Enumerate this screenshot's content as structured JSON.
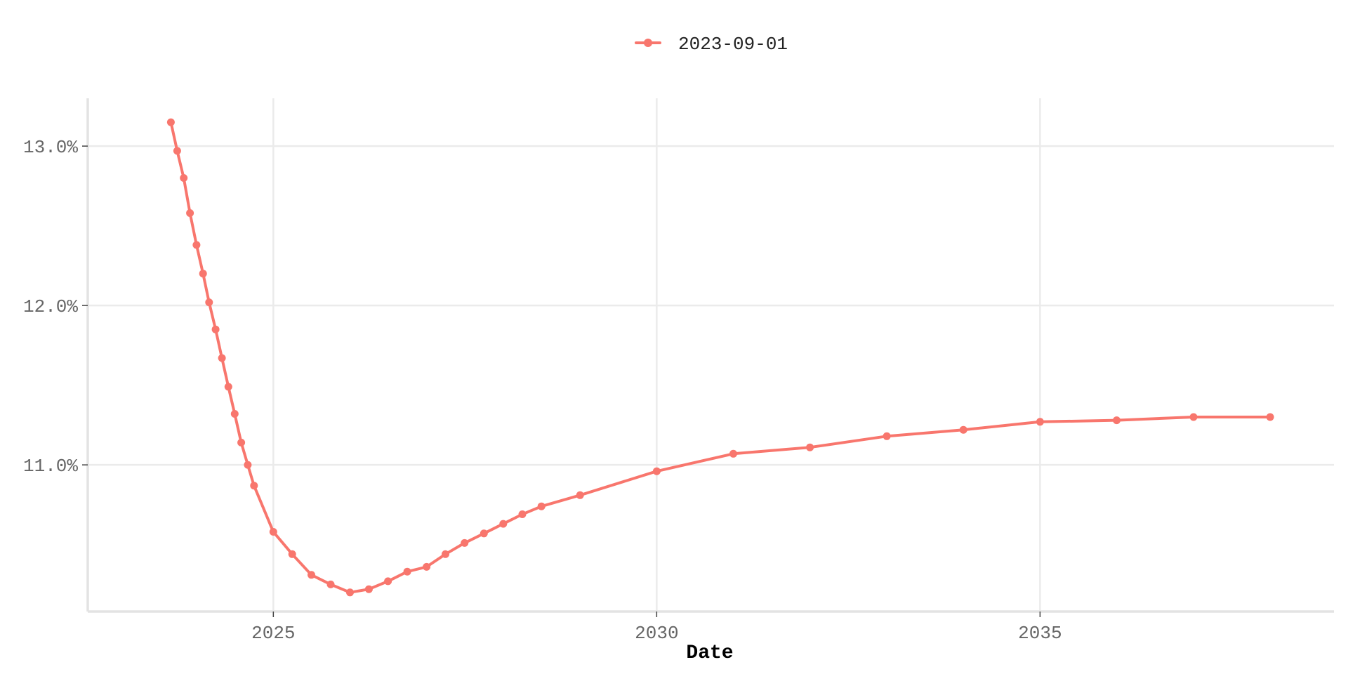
{
  "chart_data": {
    "type": "line",
    "title": "",
    "xlabel": "Date",
    "ylabel": "",
    "x_tick_labels": [
      "2025",
      "2030",
      "2035"
    ],
    "x_ticks": [
      "2025-01-01",
      "2030-01-01",
      "2035-01-01"
    ],
    "y_tick_labels": [
      "11.0%",
      "12.0%",
      "13.0%"
    ],
    "y_ticks": [
      11.0,
      12.0,
      13.0
    ],
    "xlim": [
      "2022-08-01",
      "2038-11-01"
    ],
    "ylim": [
      10.08,
      13.3
    ],
    "grid": true,
    "legend_position": "top",
    "series": [
      {
        "name": "2023-09-01",
        "color": "#f8766d",
        "points": [
          {
            "x": "2023-09-01",
            "y": 13.15
          },
          {
            "x": "2023-10-01",
            "y": 12.97
          },
          {
            "x": "2023-11-01",
            "y": 12.8
          },
          {
            "x": "2023-12-01",
            "y": 12.58
          },
          {
            "x": "2024-01-01",
            "y": 12.38
          },
          {
            "x": "2024-02-01",
            "y": 12.2
          },
          {
            "x": "2024-03-01",
            "y": 12.02
          },
          {
            "x": "2024-04-01",
            "y": 11.85
          },
          {
            "x": "2024-05-01",
            "y": 11.67
          },
          {
            "x": "2024-06-01",
            "y": 11.49
          },
          {
            "x": "2024-07-01",
            "y": 11.32
          },
          {
            "x": "2024-08-01",
            "y": 11.14
          },
          {
            "x": "2024-09-01",
            "y": 11.0
          },
          {
            "x": "2024-10-01",
            "y": 10.87
          },
          {
            "x": "2025-01-01",
            "y": 10.58
          },
          {
            "x": "2025-04-01",
            "y": 10.44
          },
          {
            "x": "2025-07-01",
            "y": 10.31
          },
          {
            "x": "2025-10-01",
            "y": 10.25
          },
          {
            "x": "2026-01-01",
            "y": 10.2
          },
          {
            "x": "2026-04-01",
            "y": 10.22
          },
          {
            "x": "2026-07-01",
            "y": 10.27
          },
          {
            "x": "2026-10-01",
            "y": 10.33
          },
          {
            "x": "2027-01-01",
            "y": 10.36
          },
          {
            "x": "2027-04-01",
            "y": 10.44
          },
          {
            "x": "2027-07-01",
            "y": 10.51
          },
          {
            "x": "2027-10-01",
            "y": 10.57
          },
          {
            "x": "2028-01-01",
            "y": 10.63
          },
          {
            "x": "2028-04-01",
            "y": 10.69
          },
          {
            "x": "2028-07-01",
            "y": 10.74
          },
          {
            "x": "2029-01-01",
            "y": 10.81
          },
          {
            "x": "2030-01-01",
            "y": 10.96
          },
          {
            "x": "2031-01-01",
            "y": 11.07
          },
          {
            "x": "2032-01-01",
            "y": 11.11
          },
          {
            "x": "2033-01-01",
            "y": 11.18
          },
          {
            "x": "2034-01-01",
            "y": 11.22
          },
          {
            "x": "2035-01-01",
            "y": 11.27
          },
          {
            "x": "2036-01-01",
            "y": 11.28
          },
          {
            "x": "2037-01-01",
            "y": 11.3
          },
          {
            "x": "2038-01-01",
            "y": 11.3
          }
        ]
      }
    ]
  }
}
